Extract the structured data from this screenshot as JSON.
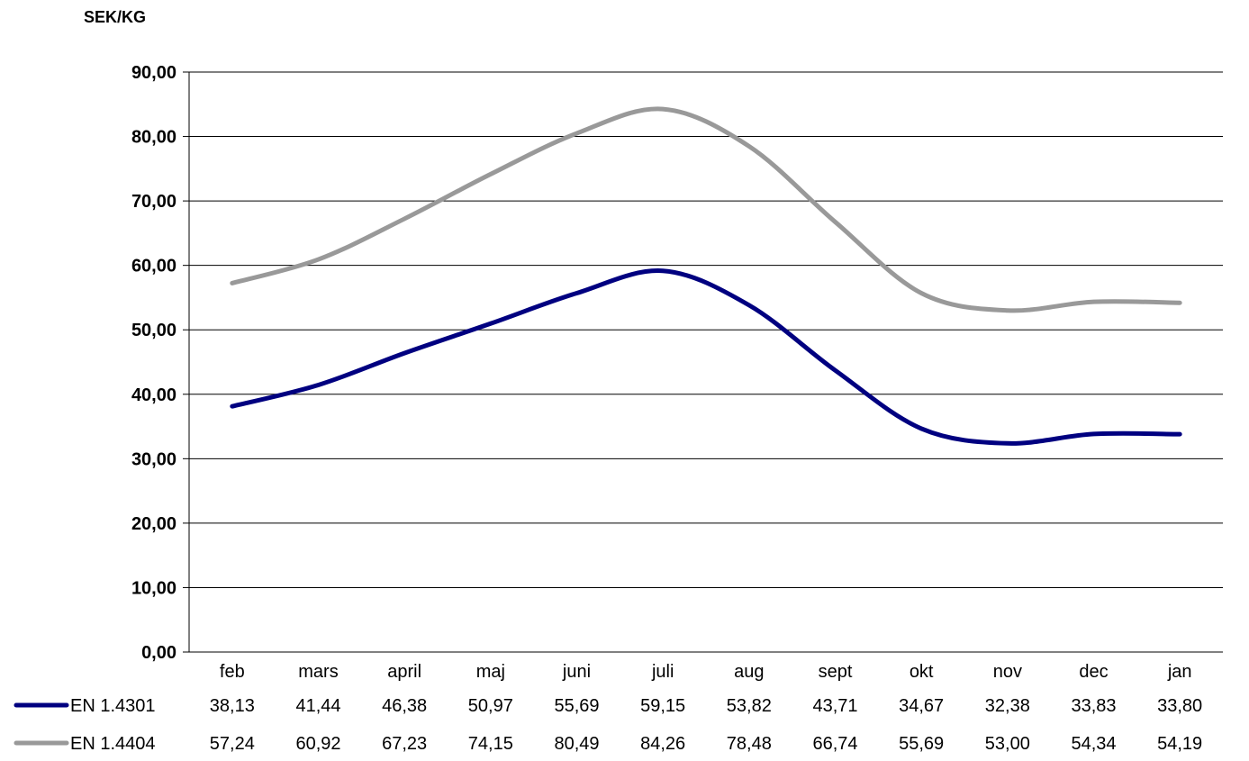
{
  "chart_data": {
    "type": "line",
    "title": "",
    "ylabel": "SEK/KG",
    "xlabel": "",
    "ylim": [
      0,
      90
    ],
    "yticks": [
      "0,00",
      "10,00",
      "20,00",
      "30,00",
      "40,00",
      "50,00",
      "60,00",
      "70,00",
      "80,00",
      "90,00"
    ],
    "categories": [
      "feb",
      "mars",
      "april",
      "maj",
      "juni",
      "juli",
      "aug",
      "sept",
      "okt",
      "nov",
      "dec",
      "jan"
    ],
    "grid": true,
    "legend": "bottom data table",
    "series": [
      {
        "name": "EN 1.4301",
        "color": "#000080",
        "values": [
          38.13,
          41.44,
          46.38,
          50.97,
          55.69,
          59.15,
          53.82,
          43.71,
          34.67,
          32.38,
          33.83,
          33.8
        ],
        "labels": [
          "38,13",
          "41,44",
          "46,38",
          "50,97",
          "55,69",
          "59,15",
          "53,82",
          "43,71",
          "34,67",
          "32,38",
          "33,83",
          "33,80"
        ]
      },
      {
        "name": "EN 1.4404",
        "color": "#999999",
        "values": [
          57.24,
          60.92,
          67.23,
          74.15,
          80.49,
          84.26,
          78.48,
          66.74,
          55.69,
          53.0,
          54.34,
          54.19
        ],
        "labels": [
          "57,24",
          "60,92",
          "67,23",
          "74,15",
          "80,49",
          "84,26",
          "78,48",
          "66,74",
          "55,69",
          "53,00",
          "54,34",
          "54,19"
        ]
      }
    ]
  }
}
